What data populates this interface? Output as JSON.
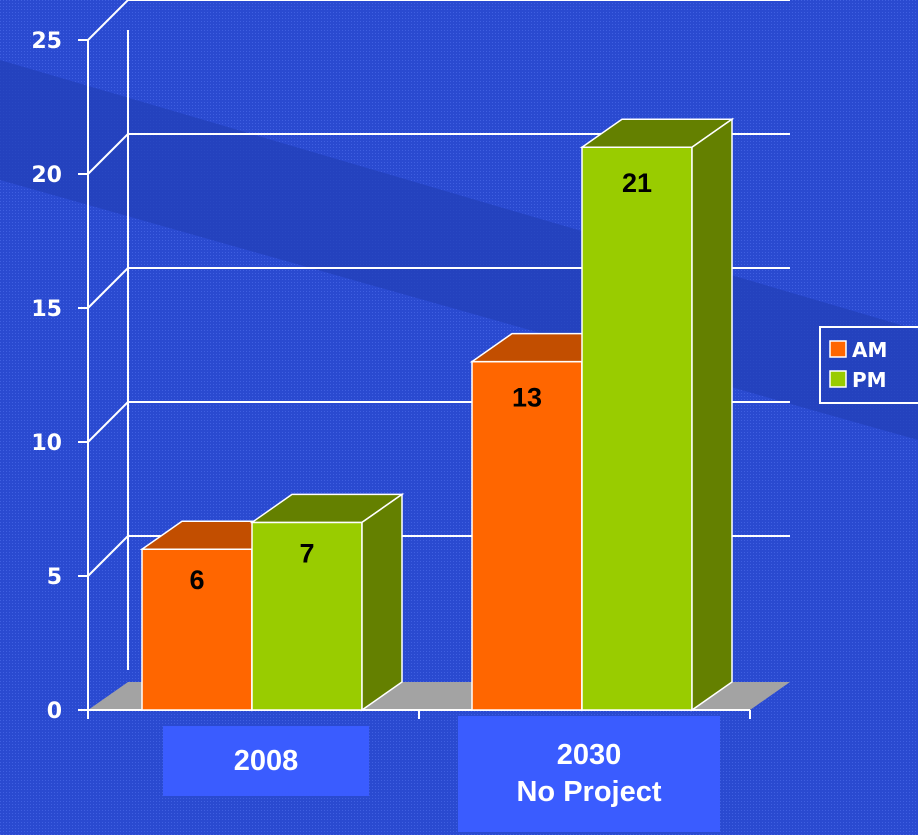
{
  "chart_data": {
    "type": "bar",
    "categories": [
      "2008",
      "2030\nNo Project"
    ],
    "category_lines": [
      [
        "2008"
      ],
      [
        "2030",
        "No Project"
      ]
    ],
    "series": [
      {
        "name": "AM",
        "values": [
          6,
          13
        ],
        "color": "#ff6600",
        "dark": "#c24e00"
      },
      {
        "name": "PM",
        "values": [
          7,
          21
        ],
        "color": "#99cc00",
        "dark": "#648000"
      }
    ],
    "ylim": [
      0,
      25
    ],
    "yticks": [
      0,
      5,
      10,
      15,
      20,
      25
    ],
    "data_labels": [
      [
        "6",
        "13"
      ],
      [
        "7",
        "21"
      ]
    ],
    "grid": true,
    "legend_position": "right",
    "background_color": "#2a4ad0",
    "floor_color": "#a3a3a3",
    "title": "",
    "xlabel": "",
    "ylabel": ""
  }
}
